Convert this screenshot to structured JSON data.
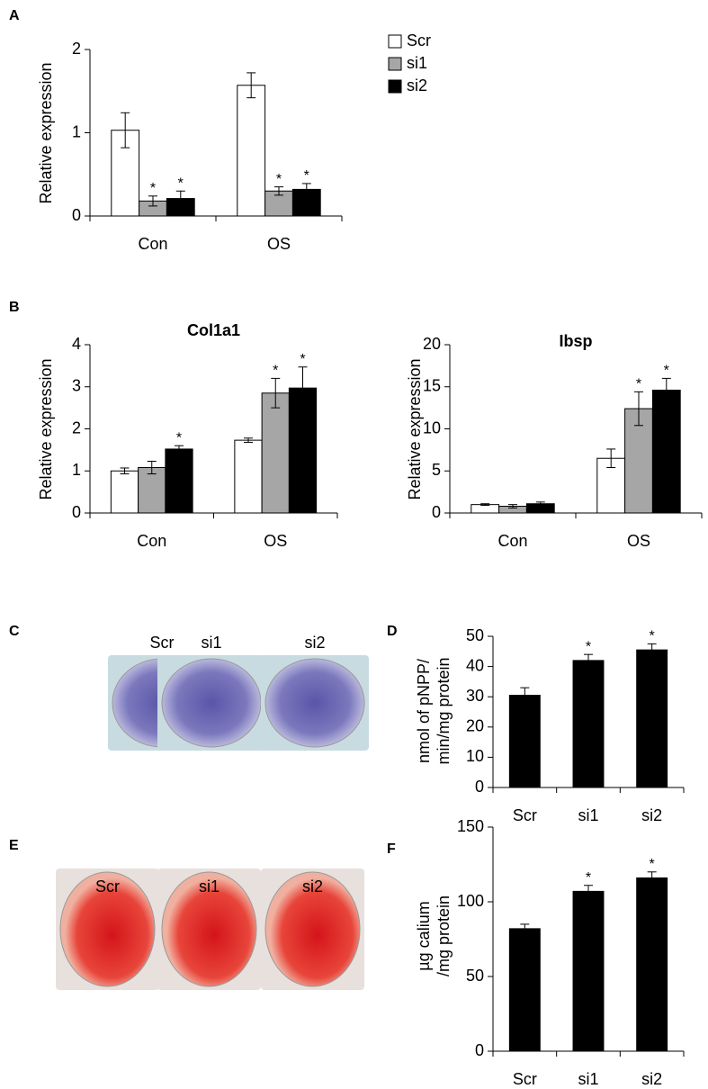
{
  "chart_data": [
    {
      "type": "bar",
      "label": "A",
      "ylabel": "Relative expression",
      "categories": [
        "Con",
        "OS"
      ],
      "ylim": [
        0,
        2
      ],
      "yticks": [
        0,
        1,
        2
      ],
      "legend": "top-right",
      "series": [
        {
          "name": "Scr",
          "color": "#ffffff",
          "values": [
            1.03,
            1.57
          ],
          "errors": [
            0.21,
            0.15
          ],
          "annotations": [
            null,
            null
          ]
        },
        {
          "name": "si1",
          "color": "#a6a6a6",
          "values": [
            0.18,
            0.3
          ],
          "errors": [
            0.06,
            0.05
          ],
          "annotations": [
            "*",
            "*"
          ]
        },
        {
          "name": "si2",
          "color": "#000000",
          "values": [
            0.21,
            0.32
          ],
          "errors": [
            0.09,
            0.07
          ],
          "annotations": [
            "*",
            "*"
          ]
        }
      ]
    },
    {
      "type": "bar",
      "label": "B",
      "title": "Col1a1",
      "ylabel": "Relative expression",
      "categories": [
        "Con",
        "OS"
      ],
      "ylim": [
        0,
        4
      ],
      "yticks": [
        0,
        1,
        2,
        3,
        4
      ],
      "series": [
        {
          "color": "#ffffff",
          "values": [
            1.0,
            1.73
          ],
          "errors": [
            0.07,
            0.05
          ],
          "annotations": [
            null,
            null
          ]
        },
        {
          "color": "#a6a6a6",
          "values": [
            1.08,
            2.85
          ],
          "errors": [
            0.15,
            0.35
          ],
          "annotations": [
            null,
            "*"
          ]
        },
        {
          "color": "#000000",
          "values": [
            1.52,
            2.97
          ],
          "errors": [
            0.08,
            0.5
          ],
          "annotations": [
            "*",
            "*"
          ]
        }
      ]
    },
    {
      "type": "bar",
      "title": "Ibsp",
      "ylabel": "Relative expression",
      "categories": [
        "Con",
        "OS"
      ],
      "ylim": [
        0,
        20
      ],
      "yticks": [
        0,
        5,
        10,
        15,
        20
      ],
      "series": [
        {
          "color": "#ffffff",
          "values": [
            1.0,
            6.5
          ],
          "errors": [
            0.1,
            1.1
          ],
          "annotations": [
            null,
            null
          ]
        },
        {
          "color": "#a6a6a6",
          "values": [
            0.8,
            12.4
          ],
          "errors": [
            0.2,
            2.0
          ],
          "annotations": [
            null,
            "*"
          ]
        },
        {
          "color": "#000000",
          "values": [
            1.1,
            14.6
          ],
          "errors": [
            0.2,
            1.4
          ],
          "annotations": [
            null,
            "*"
          ]
        }
      ]
    },
    {
      "type": "bar",
      "label": "D",
      "ylabel": [
        "nmol of pNPP/",
        "min/mg protein"
      ],
      "categories": [
        "Scr",
        "si1",
        "si2"
      ],
      "ylim": [
        0,
        50
      ],
      "yticks": [
        0,
        10,
        20,
        30,
        40,
        50
      ],
      "series": [
        {
          "color": "#000000",
          "values": [
            30.5,
            42,
            45.5
          ],
          "errors": [
            2.5,
            2,
            2
          ],
          "annotations": [
            null,
            "*",
            "*"
          ]
        }
      ]
    },
    {
      "type": "bar",
      "label": "F",
      "ylabel": [
        "µg calium",
        "/mg protein"
      ],
      "categories": [
        "Scr",
        "si1",
        "si2"
      ],
      "ylim": [
        0,
        150
      ],
      "yticks": [
        0,
        50,
        100,
        150
      ],
      "series": [
        {
          "color": "#000000",
          "values": [
            82,
            107,
            116
          ],
          "errors": [
            3,
            4,
            4
          ],
          "annotations": [
            null,
            "*",
            "*"
          ]
        }
      ]
    }
  ],
  "image_panels": [
    {
      "label": "C",
      "captions": [
        "Scr",
        "si1",
        "si2"
      ]
    },
    {
      "label": "E",
      "captions": [
        "Scr",
        "si1",
        "si2"
      ]
    }
  ]
}
